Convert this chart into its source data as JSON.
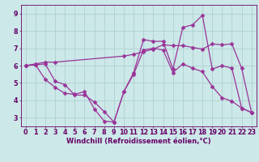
{
  "line1": {
    "x": [
      0,
      1,
      2,
      3,
      10,
      11,
      12,
      13,
      14,
      15,
      16,
      17,
      18,
      19,
      20,
      21,
      22,
      23
    ],
    "y": [
      6.0,
      6.1,
      6.2,
      6.2,
      6.55,
      6.65,
      6.8,
      6.95,
      7.2,
      7.15,
      7.15,
      7.05,
      6.95,
      7.25,
      7.2,
      7.25,
      5.85,
      3.3
    ],
    "color": "#993399",
    "marker": "D",
    "markersize": 2.5,
    "linewidth": 0.9
  },
  "line2": {
    "x": [
      0,
      1,
      2,
      3,
      4,
      5,
      6,
      7,
      8,
      9,
      10,
      11,
      12,
      13,
      14,
      15,
      16,
      17,
      18,
      19,
      20,
      21,
      22,
      23
    ],
    "y": [
      6.0,
      6.05,
      5.2,
      4.75,
      4.4,
      4.35,
      4.5,
      3.5,
      2.8,
      2.75,
      4.5,
      5.6,
      7.5,
      7.4,
      7.4,
      5.8,
      8.2,
      8.35,
      8.9,
      5.8,
      6.0,
      5.85,
      3.55,
      3.3
    ],
    "color": "#993399",
    "marker": "D",
    "markersize": 2.5,
    "linewidth": 0.9
  },
  "line3": {
    "x": [
      0,
      1,
      2,
      3,
      4,
      5,
      6,
      7,
      8,
      9,
      10,
      11,
      12,
      13,
      14,
      15,
      16,
      17,
      18,
      19,
      20,
      21,
      22,
      23
    ],
    "y": [
      6.0,
      6.05,
      6.1,
      5.1,
      4.9,
      4.3,
      4.3,
      3.9,
      3.35,
      2.75,
      4.5,
      5.5,
      6.9,
      7.0,
      6.9,
      5.6,
      6.1,
      5.85,
      5.65,
      4.8,
      4.15,
      3.95,
      3.55,
      3.3
    ],
    "color": "#993399",
    "marker": "D",
    "markersize": 2.5,
    "linewidth": 0.9
  },
  "background_color": "#cce8e8",
  "grid_color": "#aacccc",
  "axes_color": "#660066",
  "xlabel": "Windchill (Refroidissement éolien,°C)",
  "xlabel_fontsize": 6.0,
  "tick_fontsize": 5.8,
  "xlim": [
    -0.5,
    23.5
  ],
  "ylim": [
    2.5,
    9.5
  ],
  "xticks": [
    0,
    1,
    2,
    3,
    4,
    5,
    6,
    7,
    8,
    9,
    10,
    11,
    12,
    13,
    14,
    15,
    16,
    17,
    18,
    19,
    20,
    21,
    22,
    23
  ],
  "yticks": [
    3,
    4,
    5,
    6,
    7,
    8,
    9
  ]
}
